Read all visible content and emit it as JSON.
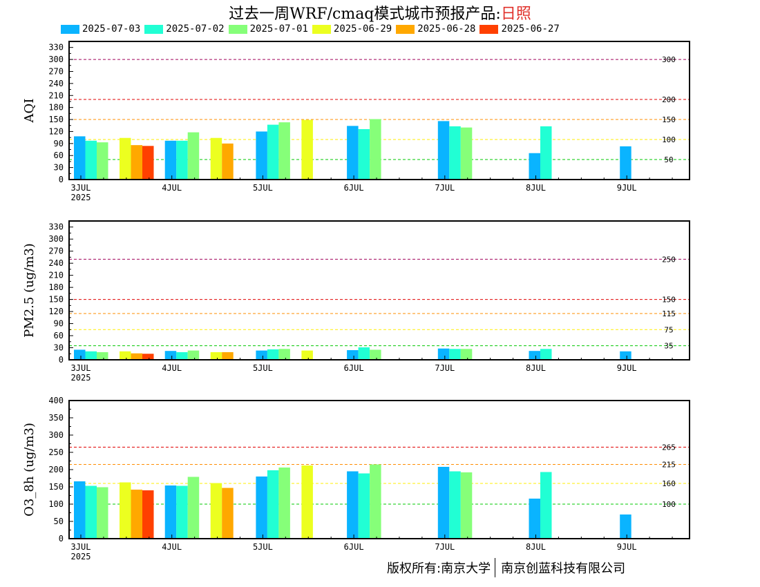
{
  "header": {
    "title_prefix": "过去一周WRF/cmaq模式城市预报产品:",
    "city": "日照"
  },
  "legend": [
    {
      "label": "2025-07-03",
      "color": "#0ab4ff"
    },
    {
      "label": "2025-07-02",
      "color": "#21ffd4"
    },
    {
      "label": "2025-07-01",
      "color": "#86ff79"
    },
    {
      "label": "2025-06-29",
      "color": "#ecff20"
    },
    {
      "label": "2025-06-28",
      "color": "#ffa800"
    },
    {
      "label": "2025-06-27",
      "color": "#ff4000"
    }
  ],
  "x_axis": {
    "tick_labels": [
      "3JUL",
      "4JUL",
      "5JUL",
      "6JUL",
      "7JUL",
      "8JUL",
      "9JUL"
    ],
    "year_label": "2025"
  },
  "copyright": {
    "owner": "版权所有:南京大学",
    "partner": "南京创蓝科技有限公司"
  },
  "chart_data": [
    {
      "type": "bar",
      "ylabel": "AQI",
      "ylim": [
        0,
        345
      ],
      "yticks": [
        0,
        30,
        60,
        90,
        120,
        150,
        180,
        210,
        240,
        270,
        300,
        330
      ],
      "thresholds": [
        {
          "value": 300,
          "label": "300",
          "color": "#a0005a"
        },
        {
          "value": 200,
          "label": "200",
          "color": "#e00000"
        },
        {
          "value": 150,
          "label": "150",
          "color": "#ff8c00"
        },
        {
          "value": 100,
          "label": "100",
          "color": "#ffee00"
        },
        {
          "value": 50,
          "label": "50",
          "color": "#00c800"
        }
      ],
      "series": [
        {
          "name": "2025-07-03",
          "values": [
            108,
            97,
            120,
            134,
            146,
            66,
            83
          ]
        },
        {
          "name": "2025-07-02",
          "values": [
            97,
            97,
            137,
            126,
            133,
            133,
            null
          ]
        },
        {
          "name": "2025-07-01",
          "values": [
            93,
            118,
            143,
            151,
            130,
            null,
            null
          ]
        },
        {
          "name": "2025-06-29",
          "values": [
            104,
            104,
            149,
            null,
            null,
            null,
            null
          ]
        },
        {
          "name": "2025-06-28",
          "values": [
            86,
            90,
            null,
            null,
            null,
            null,
            null
          ]
        },
        {
          "name": "2025-06-27",
          "values": [
            84,
            null,
            null,
            null,
            null,
            null,
            null
          ]
        }
      ]
    },
    {
      "type": "bar",
      "ylabel": "PM2.5 (ug/m3)",
      "ylim": [
        0,
        345
      ],
      "yticks": [
        0,
        30,
        60,
        90,
        120,
        150,
        180,
        210,
        240,
        270,
        300,
        330
      ],
      "thresholds": [
        {
          "value": 250,
          "label": "250",
          "color": "#a0005a"
        },
        {
          "value": 150,
          "label": "150",
          "color": "#e00000"
        },
        {
          "value": 115,
          "label": "115",
          "color": "#ff8c00"
        },
        {
          "value": 75,
          "label": "75",
          "color": "#ffee00"
        },
        {
          "value": 35,
          "label": "35",
          "color": "#00c800"
        }
      ],
      "series": [
        {
          "name": "2025-07-03",
          "values": [
            25,
            22,
            23,
            24,
            28,
            22,
            21
          ]
        },
        {
          "name": "2025-07-02",
          "values": [
            21,
            19,
            26,
            31,
            27,
            27,
            null
          ]
        },
        {
          "name": "2025-07-01",
          "values": [
            19,
            23,
            27,
            25,
            27,
            null,
            null
          ]
        },
        {
          "name": "2025-06-29",
          "values": [
            21,
            19,
            23,
            null,
            null,
            null,
            null
          ]
        },
        {
          "name": "2025-06-28",
          "values": [
            16,
            19,
            null,
            null,
            null,
            null,
            null
          ]
        },
        {
          "name": "2025-06-27",
          "values": [
            15,
            null,
            null,
            null,
            null,
            null,
            null
          ]
        }
      ]
    },
    {
      "type": "bar",
      "ylabel": "O3_8h (ug/m3)",
      "ylim": [
        0,
        400
      ],
      "yticks": [
        0,
        50,
        100,
        150,
        200,
        250,
        300,
        350,
        400
      ],
      "thresholds": [
        {
          "value": 265,
          "label": "265",
          "color": "#e00000"
        },
        {
          "value": 215,
          "label": "215",
          "color": "#ff8c00"
        },
        {
          "value": 160,
          "label": "160",
          "color": "#ffee00"
        },
        {
          "value": 100,
          "label": "100",
          "color": "#00c800"
        }
      ],
      "series": [
        {
          "name": "2025-07-03",
          "values": [
            166,
            154,
            180,
            195,
            208,
            116,
            70
          ]
        },
        {
          "name": "2025-07-02",
          "values": [
            153,
            153,
            198,
            189,
            195,
            193,
            null
          ]
        },
        {
          "name": "2025-07-01",
          "values": [
            149,
            179,
            206,
            215,
            192,
            null,
            null
          ]
        },
        {
          "name": "2025-06-29",
          "values": [
            163,
            161,
            212,
            null,
            null,
            null,
            null
          ]
        },
        {
          "name": "2025-06-28",
          "values": [
            142,
            147,
            null,
            null,
            null,
            null,
            null
          ]
        },
        {
          "name": "2025-06-27",
          "values": [
            140,
            null,
            null,
            null,
            null,
            null,
            null
          ]
        }
      ]
    }
  ]
}
